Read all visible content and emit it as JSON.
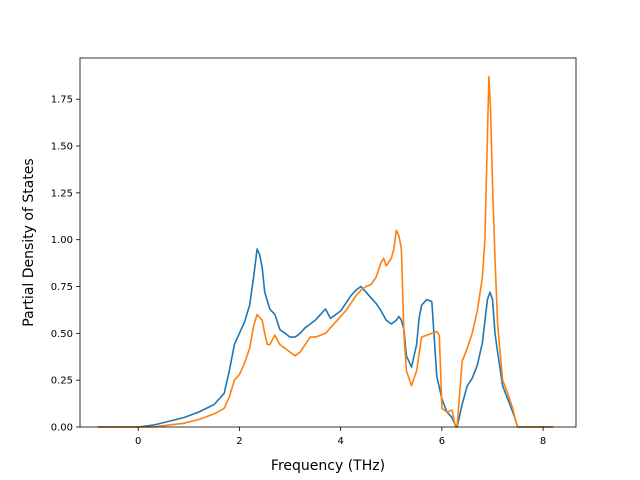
{
  "chart_data": {
    "type": "line",
    "xlabel": "Frequency (THz)",
    "ylabel": "Partial Density of States",
    "xlim": [
      -1.15,
      8.65
    ],
    "ylim": [
      0.0,
      1.97
    ],
    "xticks": [
      0,
      2,
      4,
      6,
      8
    ],
    "yticks": [
      0.0,
      0.25,
      0.5,
      0.75,
      1.0,
      1.25,
      1.5,
      1.75
    ],
    "xtick_labels": [
      "0",
      "2",
      "4",
      "6",
      "8"
    ],
    "ytick_labels": [
      "0.00",
      "0.25",
      "0.50",
      "0.75",
      "1.00",
      "1.25",
      "1.50",
      "1.75"
    ],
    "grid": false,
    "series": [
      {
        "color": "#1f77b4",
        "x": [
          -0.8,
          -0.4,
          0.0,
          0.3,
          0.6,
          0.9,
          1.2,
          1.5,
          1.7,
          1.8,
          1.9,
          2.0,
          2.1,
          2.2,
          2.28,
          2.35,
          2.4,
          2.45,
          2.5,
          2.6,
          2.7,
          2.8,
          2.9,
          3.0,
          3.1,
          3.2,
          3.3,
          3.4,
          3.5,
          3.6,
          3.7,
          3.8,
          3.9,
          4.0,
          4.1,
          4.2,
          4.3,
          4.4,
          4.5,
          4.6,
          4.7,
          4.8,
          4.9,
          5.0,
          5.1,
          5.15,
          5.2,
          5.25,
          5.3,
          5.4,
          5.5,
          5.55,
          5.6,
          5.7,
          5.8,
          5.9,
          6.0,
          6.1,
          6.2,
          6.27,
          6.3,
          6.4,
          6.5,
          6.6,
          6.7,
          6.8,
          6.9,
          6.95,
          7.0,
          7.05,
          7.1,
          7.2,
          7.3,
          7.4,
          7.45,
          7.5,
          7.8,
          8.2
        ],
        "y": [
          0.0,
          0.0,
          0.0,
          0.01,
          0.03,
          0.05,
          0.08,
          0.12,
          0.18,
          0.3,
          0.44,
          0.5,
          0.56,
          0.65,
          0.8,
          0.95,
          0.92,
          0.85,
          0.72,
          0.63,
          0.6,
          0.52,
          0.5,
          0.48,
          0.48,
          0.5,
          0.53,
          0.55,
          0.57,
          0.6,
          0.63,
          0.58,
          0.6,
          0.62,
          0.66,
          0.7,
          0.73,
          0.75,
          0.72,
          0.69,
          0.66,
          0.62,
          0.57,
          0.55,
          0.57,
          0.59,
          0.57,
          0.52,
          0.38,
          0.32,
          0.44,
          0.58,
          0.65,
          0.68,
          0.67,
          0.27,
          0.15,
          0.08,
          0.05,
          0.01,
          0.0,
          0.12,
          0.22,
          0.26,
          0.33,
          0.45,
          0.68,
          0.72,
          0.68,
          0.5,
          0.4,
          0.22,
          0.15,
          0.08,
          0.04,
          0.0,
          0.0,
          0.0
        ]
      },
      {
        "color": "#ff7f0e",
        "x": [
          -0.8,
          -0.4,
          0.0,
          0.3,
          0.6,
          0.9,
          1.2,
          1.5,
          1.7,
          1.8,
          1.9,
          2.0,
          2.1,
          2.2,
          2.28,
          2.35,
          2.45,
          2.5,
          2.55,
          2.6,
          2.7,
          2.8,
          2.9,
          3.0,
          3.1,
          3.2,
          3.3,
          3.4,
          3.5,
          3.6,
          3.7,
          3.8,
          3.9,
          4.0,
          4.1,
          4.2,
          4.3,
          4.4,
          4.5,
          4.6,
          4.7,
          4.8,
          4.85,
          4.9,
          5.0,
          5.05,
          5.1,
          5.15,
          5.2,
          5.25,
          5.3,
          5.4,
          5.5,
          5.6,
          5.7,
          5.8,
          5.9,
          5.95,
          6.0,
          6.1,
          6.2,
          6.27,
          6.3,
          6.4,
          6.5,
          6.6,
          6.7,
          6.8,
          6.85,
          6.9,
          6.93,
          6.96,
          7.0,
          7.05,
          7.1,
          7.2,
          7.3,
          7.4,
          7.45,
          7.5,
          7.8,
          8.2
        ],
        "y": [
          0.0,
          0.0,
          0.0,
          0.0,
          0.01,
          0.02,
          0.04,
          0.07,
          0.1,
          0.16,
          0.25,
          0.28,
          0.34,
          0.42,
          0.54,
          0.6,
          0.57,
          0.5,
          0.44,
          0.44,
          0.49,
          0.44,
          0.42,
          0.4,
          0.38,
          0.4,
          0.44,
          0.48,
          0.48,
          0.49,
          0.5,
          0.53,
          0.56,
          0.59,
          0.62,
          0.66,
          0.7,
          0.73,
          0.75,
          0.76,
          0.8,
          0.88,
          0.9,
          0.86,
          0.9,
          0.95,
          1.05,
          1.02,
          0.95,
          0.5,
          0.3,
          0.22,
          0.3,
          0.48,
          0.49,
          0.5,
          0.51,
          0.49,
          0.1,
          0.08,
          0.09,
          0.0,
          0.0,
          0.35,
          0.42,
          0.5,
          0.62,
          0.8,
          1.0,
          1.55,
          1.87,
          1.7,
          1.3,
          0.9,
          0.55,
          0.25,
          0.18,
          0.1,
          0.04,
          0.0,
          0.0,
          0.0
        ]
      }
    ]
  }
}
